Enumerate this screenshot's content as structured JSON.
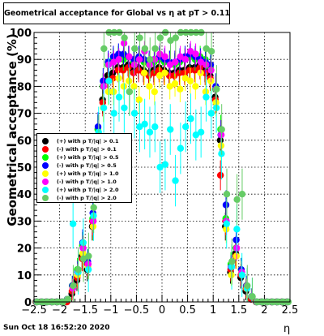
{
  "chart_data": {
    "type": "scatter",
    "title": "Geometrical acceptance for Global vs  η at pT > 0.11",
    "xlabel": "η",
    "ylabel": "Geometrical acceptance (%)",
    "xlim": [
      -2.5,
      2.5
    ],
    "ylim": [
      0,
      100
    ],
    "x_ticks": [
      -2.5,
      -2,
      -1.5,
      -1,
      -0.5,
      0,
      0.5,
      1,
      1.5,
      2,
      2.5
    ],
    "x_tick_labels": [
      "−2.5",
      "−2",
      "−1.5",
      "−1",
      "−0.5",
      "0",
      "0.5",
      "1",
      "1.5",
      "2",
      "2.5"
    ],
    "y_ticks": [
      0,
      10,
      20,
      30,
      40,
      50,
      60,
      70,
      80,
      90,
      100
    ],
    "y_tick_labels": [
      "0",
      "10",
      "20",
      "30",
      "40",
      "50",
      "60",
      "70",
      "80",
      "90",
      "100"
    ],
    "grid": true,
    "legend_position": "left-middle",
    "x": [
      -2.45,
      -2.35,
      -2.25,
      -2.15,
      -2.05,
      -1.95,
      -1.85,
      -1.75,
      -1.65,
      -1.55,
      -1.45,
      -1.35,
      -1.25,
      -1.15,
      -1.05,
      -0.95,
      -0.85,
      -0.75,
      -0.65,
      -0.55,
      -0.45,
      -0.35,
      -0.25,
      -0.15,
      -0.05,
      0.05,
      0.15,
      0.25,
      0.35,
      0.45,
      0.55,
      0.65,
      0.75,
      0.85,
      0.95,
      1.05,
      1.15,
      1.25,
      1.35,
      1.45,
      1.55,
      1.65,
      1.75,
      1.85,
      1.95,
      2.05,
      2.15,
      2.25,
      2.35,
      2.45
    ],
    "series": [
      {
        "name": "(+) with p T/|q| > 0.1",
        "color": "#000000",
        "values": [
          0,
          0,
          0,
          0,
          0,
          0,
          0,
          3,
          8,
          17,
          12,
          28,
          58,
          75,
          84,
          85,
          87,
          87,
          88,
          86,
          87,
          86,
          85,
          86,
          87,
          86,
          85,
          85,
          86,
          86,
          87,
          87,
          88,
          86,
          84,
          76,
          60,
          28,
          11,
          18,
          9,
          4,
          1,
          0,
          0,
          0,
          0,
          0,
          0,
          0
        ]
      },
      {
        "name": "(-) with p T/|q| > 0.1",
        "color": "#ff0000",
        "values": [
          0,
          0,
          0,
          0,
          0,
          0,
          0,
          4,
          9,
          16,
          14,
          30,
          58,
          74,
          82,
          83,
          86,
          86,
          87,
          85,
          86,
          85,
          84,
          85,
          86,
          85,
          84,
          84,
          85,
          85,
          86,
          86,
          87,
          85,
          83,
          75,
          47,
          30,
          12,
          17,
          10,
          5,
          1,
          0,
          0,
          0,
          0,
          0,
          0,
          0
        ]
      },
      {
        "name": "(+) with p T/|q| > 0.5",
        "color": "#00ff00",
        "values": [
          0,
          0,
          0,
          0,
          0,
          0,
          1,
          6,
          12,
          21,
          15,
          31,
          64,
          80,
          88,
          90,
          91,
          90,
          91,
          89,
          90,
          89,
          88,
          89,
          90,
          89,
          89,
          88,
          89,
          90,
          91,
          90,
          91,
          90,
          87,
          79,
          64,
          31,
          14,
          20,
          12,
          6,
          2,
          0,
          0,
          0,
          0,
          0,
          0,
          0
        ]
      },
      {
        "name": "(-) with p T/|q| > 0.5",
        "color": "#0000ff",
        "values": [
          0,
          0,
          0,
          0,
          0,
          0,
          1,
          6,
          11,
          22,
          15,
          33,
          65,
          82,
          89,
          91,
          92,
          92,
          91,
          90,
          91,
          90,
          89,
          90,
          91,
          90,
          89,
          89,
          90,
          91,
          92,
          91,
          90,
          89,
          88,
          80,
          62,
          36,
          13,
          23,
          12,
          6,
          2,
          0,
          0,
          0,
          0,
          0,
          0,
          0
        ]
      },
      {
        "name": "(+) with p T/|q| > 1.0",
        "color": "#ffff00",
        "values": [
          0,
          0,
          0,
          0,
          0,
          0,
          1,
          5,
          10,
          18,
          13,
          28,
          57,
          72,
          78,
          78,
          83,
          80,
          82,
          80,
          75,
          85,
          80,
          78,
          84,
          85,
          80,
          81,
          79,
          83,
          82,
          80,
          85,
          78,
          82,
          74,
          58,
          27,
          10,
          17,
          11,
          5,
          2,
          0,
          0,
          0,
          0,
          0,
          0,
          0
        ]
      },
      {
        "name": "(-) with p T/|q| > 1.0",
        "color": "#ff00ff",
        "values": [
          0,
          0,
          0,
          0,
          0,
          0,
          1,
          5,
          11,
          20,
          14,
          30,
          62,
          80,
          88,
          89,
          90,
          96,
          91,
          88,
          90,
          93,
          88,
          90,
          92,
          91,
          88,
          89,
          91,
          90,
          93,
          92,
          89,
          88,
          86,
          79,
          62,
          30,
          13,
          20,
          11,
          6,
          2,
          0,
          0,
          0,
          0,
          0,
          0,
          0
        ]
      },
      {
        "name": "(+) with p T/|q| > 2.0",
        "color": "#00ffff",
        "values": [
          0,
          0,
          0,
          0,
          0,
          0,
          1,
          29,
          11,
          22,
          12,
          32,
          63,
          72,
          82,
          70,
          76,
          72,
          78,
          70,
          65,
          66,
          63,
          65,
          50,
          51,
          64,
          45,
          57,
          65,
          68,
          62,
          63,
          76,
          70,
          72,
          55,
          29,
          13,
          27,
          10,
          5,
          2,
          0,
          0,
          0,
          0,
          0,
          0,
          0
        ]
      },
      {
        "name": "(-) with p T/|q| > 2.0",
        "color": "#66cc66",
        "values": [
          0,
          0,
          0,
          0,
          0,
          0,
          1,
          6,
          12,
          16,
          17,
          35,
          60,
          94,
          100,
          100,
          100,
          98,
          78,
          94,
          98,
          94,
          90,
          94,
          98,
          100,
          97,
          98,
          100,
          100,
          100,
          100,
          100,
          94,
          93,
          79,
          64,
          40,
          15,
          38,
          40,
          6,
          2,
          0,
          0,
          0,
          0,
          0,
          0,
          0
        ]
      }
    ]
  },
  "footer": {
    "datestamp": "Sun Oct 18 16:52:20 2020"
  }
}
